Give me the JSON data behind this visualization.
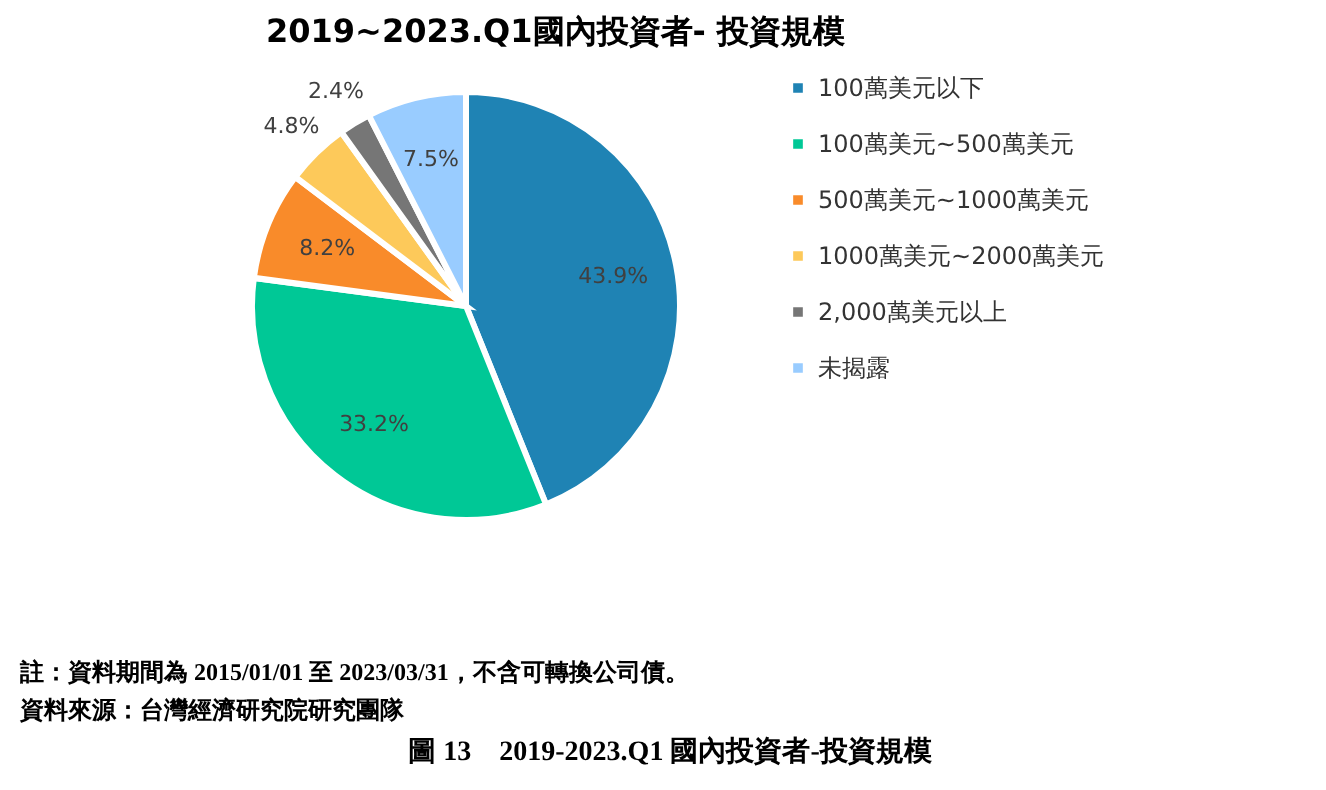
{
  "chart_data": {
    "type": "pie",
    "title": "2019~2023.Q1國內投資者- 投資規模",
    "categories": [
      "100萬美元以下",
      "100萬美元~500萬美元",
      "500萬美元~1000萬美元",
      "1000萬美元~2000萬美元",
      "2,000萬美元以上",
      "未揭露"
    ],
    "values": [
      43.9,
      33.2,
      8.2,
      4.8,
      2.4,
      7.5
    ],
    "value_labels": [
      "43.9%",
      "33.2%",
      "8.2%",
      "4.8%",
      "2.4%",
      "7.5%"
    ],
    "colors": [
      "#1f83b4",
      "#00c896",
      "#f98b2a",
      "#fdc95a",
      "#767676",
      "#99ccff"
    ],
    "legend": "right",
    "annotations": [
      "註：資料期間為 2015/01/01 至 2023/03/31，不含可轉換公司債。",
      "資料來源：台灣經濟研究院研究團隊",
      "圖 13　2019-2023.Q1  國內投資者-投資規模"
    ]
  }
}
